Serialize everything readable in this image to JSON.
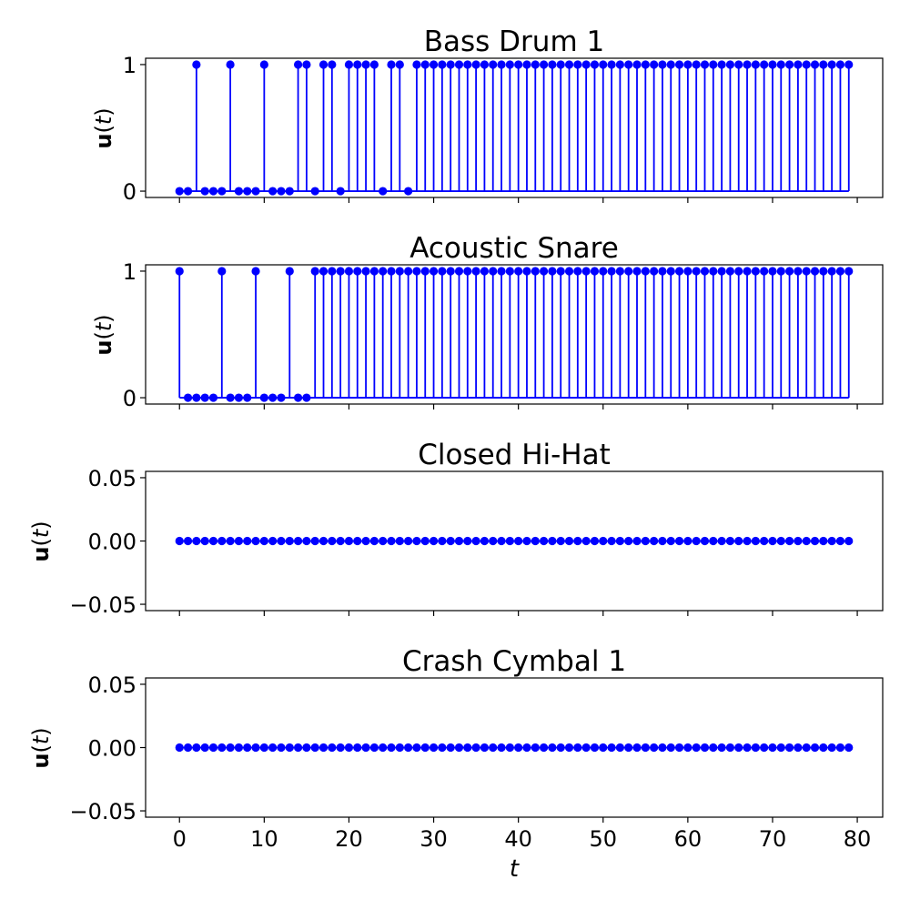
{
  "chart_data": [
    {
      "type": "stem",
      "title": "Bass Drum 1",
      "ylabel": {
        "prefix": "u",
        "open": "(",
        "var": "t",
        "close": ")"
      },
      "xlabel": "",
      "xlim": [
        -4,
        83
      ],
      "ylim": [
        -0.05,
        1.05
      ],
      "yticks": [
        0,
        1
      ],
      "ytick_labels": [
        "0",
        "1"
      ],
      "xticks": [
        0,
        10,
        20,
        30,
        40,
        50,
        60,
        70,
        80
      ],
      "show_xtick_labels": false,
      "color": "#0000ff",
      "x": [
        0,
        1,
        2,
        3,
        4,
        5,
        6,
        7,
        8,
        9,
        10,
        11,
        12,
        13,
        14,
        15,
        16,
        17,
        18,
        19,
        20,
        21,
        22,
        23,
        24,
        25,
        26,
        27,
        28,
        29,
        30,
        31,
        32,
        33,
        34,
        35,
        36,
        37,
        38,
        39,
        40,
        41,
        42,
        43,
        44,
        45,
        46,
        47,
        48,
        49,
        50,
        51,
        52,
        53,
        54,
        55,
        56,
        57,
        58,
        59,
        60,
        61,
        62,
        63,
        64,
        65,
        66,
        67,
        68,
        69,
        70,
        71,
        72,
        73,
        74,
        75,
        76,
        77,
        78,
        79
      ],
      "values": [
        0,
        0,
        1,
        0,
        0,
        0,
        1,
        0,
        0,
        0,
        1,
        0,
        0,
        0,
        1,
        1,
        0,
        1,
        1,
        0,
        1,
        1,
        1,
        1,
        0,
        1,
        1,
        0,
        1,
        1,
        1,
        1,
        1,
        1,
        1,
        1,
        1,
        1,
        1,
        1,
        1,
        1,
        1,
        1,
        1,
        1,
        1,
        1,
        1,
        1,
        1,
        1,
        1,
        1,
        1,
        1,
        1,
        1,
        1,
        1,
        1,
        1,
        1,
        1,
        1,
        1,
        1,
        1,
        1,
        1,
        1,
        1,
        1,
        1,
        1,
        1,
        1,
        1,
        1,
        1
      ]
    },
    {
      "type": "stem",
      "title": "Acoustic Snare",
      "ylabel": {
        "prefix": "u",
        "open": "(",
        "var": "t",
        "close": ")"
      },
      "xlabel": "",
      "xlim": [
        -4,
        83
      ],
      "ylim": [
        -0.05,
        1.05
      ],
      "yticks": [
        0,
        1
      ],
      "ytick_labels": [
        "0",
        "1"
      ],
      "xticks": [
        0,
        10,
        20,
        30,
        40,
        50,
        60,
        70,
        80
      ],
      "show_xtick_labels": false,
      "color": "#0000ff",
      "x": [
        0,
        1,
        2,
        3,
        4,
        5,
        6,
        7,
        8,
        9,
        10,
        11,
        12,
        13,
        14,
        15,
        16,
        17,
        18,
        19,
        20,
        21,
        22,
        23,
        24,
        25,
        26,
        27,
        28,
        29,
        30,
        31,
        32,
        33,
        34,
        35,
        36,
        37,
        38,
        39,
        40,
        41,
        42,
        43,
        44,
        45,
        46,
        47,
        48,
        49,
        50,
        51,
        52,
        53,
        54,
        55,
        56,
        57,
        58,
        59,
        60,
        61,
        62,
        63,
        64,
        65,
        66,
        67,
        68,
        69,
        70,
        71,
        72,
        73,
        74,
        75,
        76,
        77,
        78,
        79
      ],
      "values": [
        1,
        0,
        0,
        0,
        0,
        1,
        0,
        0,
        0,
        1,
        0,
        0,
        0,
        1,
        0,
        0,
        1,
        1,
        1,
        1,
        1,
        1,
        1,
        1,
        1,
        1,
        1,
        1,
        1,
        1,
        1,
        1,
        1,
        1,
        1,
        1,
        1,
        1,
        1,
        1,
        1,
        1,
        1,
        1,
        1,
        1,
        1,
        1,
        1,
        1,
        1,
        1,
        1,
        1,
        1,
        1,
        1,
        1,
        1,
        1,
        1,
        1,
        1,
        1,
        1,
        1,
        1,
        1,
        1,
        1,
        1,
        1,
        1,
        1,
        1,
        1,
        1,
        1,
        1,
        1
      ]
    },
    {
      "type": "stem",
      "title": "Closed Hi-Hat",
      "ylabel": {
        "prefix": "u",
        "open": "(",
        "var": "t",
        "close": ")"
      },
      "xlabel": "",
      "xlim": [
        -4,
        83
      ],
      "ylim": [
        -0.055,
        0.055
      ],
      "yticks": [
        -0.05,
        0.0,
        0.05
      ],
      "ytick_labels": [
        "−0.05",
        "0.00",
        "0.05"
      ],
      "xticks": [
        0,
        10,
        20,
        30,
        40,
        50,
        60,
        70,
        80
      ],
      "show_xtick_labels": false,
      "color": "#0000ff",
      "x": [
        0,
        1,
        2,
        3,
        4,
        5,
        6,
        7,
        8,
        9,
        10,
        11,
        12,
        13,
        14,
        15,
        16,
        17,
        18,
        19,
        20,
        21,
        22,
        23,
        24,
        25,
        26,
        27,
        28,
        29,
        30,
        31,
        32,
        33,
        34,
        35,
        36,
        37,
        38,
        39,
        40,
        41,
        42,
        43,
        44,
        45,
        46,
        47,
        48,
        49,
        50,
        51,
        52,
        53,
        54,
        55,
        56,
        57,
        58,
        59,
        60,
        61,
        62,
        63,
        64,
        65,
        66,
        67,
        68,
        69,
        70,
        71,
        72,
        73,
        74,
        75,
        76,
        77,
        78,
        79
      ],
      "values": [
        0,
        0,
        0,
        0,
        0,
        0,
        0,
        0,
        0,
        0,
        0,
        0,
        0,
        0,
        0,
        0,
        0,
        0,
        0,
        0,
        0,
        0,
        0,
        0,
        0,
        0,
        0,
        0,
        0,
        0,
        0,
        0,
        0,
        0,
        0,
        0,
        0,
        0,
        0,
        0,
        0,
        0,
        0,
        0,
        0,
        0,
        0,
        0,
        0,
        0,
        0,
        0,
        0,
        0,
        0,
        0,
        0,
        0,
        0,
        0,
        0,
        0,
        0,
        0,
        0,
        0,
        0,
        0,
        0,
        0,
        0,
        0,
        0,
        0,
        0,
        0,
        0,
        0,
        0,
        0
      ]
    },
    {
      "type": "stem",
      "title": "Crash Cymbal 1",
      "ylabel": {
        "prefix": "u",
        "open": "(",
        "var": "t",
        "close": ")"
      },
      "xlabel": "t",
      "xlim": [
        -4,
        83
      ],
      "ylim": [
        -0.055,
        0.055
      ],
      "yticks": [
        -0.05,
        0.0,
        0.05
      ],
      "ytick_labels": [
        "−0.05",
        "0.00",
        "0.05"
      ],
      "xticks": [
        0,
        10,
        20,
        30,
        40,
        50,
        60,
        70,
        80
      ],
      "xtick_labels": [
        "0",
        "10",
        "20",
        "30",
        "40",
        "50",
        "60",
        "70",
        "80"
      ],
      "show_xtick_labels": true,
      "color": "#0000ff",
      "x": [
        0,
        1,
        2,
        3,
        4,
        5,
        6,
        7,
        8,
        9,
        10,
        11,
        12,
        13,
        14,
        15,
        16,
        17,
        18,
        19,
        20,
        21,
        22,
        23,
        24,
        25,
        26,
        27,
        28,
        29,
        30,
        31,
        32,
        33,
        34,
        35,
        36,
        37,
        38,
        39,
        40,
        41,
        42,
        43,
        44,
        45,
        46,
        47,
        48,
        49,
        50,
        51,
        52,
        53,
        54,
        55,
        56,
        57,
        58,
        59,
        60,
        61,
        62,
        63,
        64,
        65,
        66,
        67,
        68,
        69,
        70,
        71,
        72,
        73,
        74,
        75,
        76,
        77,
        78,
        79
      ],
      "values": [
        0,
        0,
        0,
        0,
        0,
        0,
        0,
        0,
        0,
        0,
        0,
        0,
        0,
        0,
        0,
        0,
        0,
        0,
        0,
        0,
        0,
        0,
        0,
        0,
        0,
        0,
        0,
        0,
        0,
        0,
        0,
        0,
        0,
        0,
        0,
        0,
        0,
        0,
        0,
        0,
        0,
        0,
        0,
        0,
        0,
        0,
        0,
        0,
        0,
        0,
        0,
        0,
        0,
        0,
        0,
        0,
        0,
        0,
        0,
        0,
        0,
        0,
        0,
        0,
        0,
        0,
        0,
        0,
        0,
        0,
        0,
        0,
        0,
        0,
        0,
        0,
        0,
        0,
        0,
        0
      ]
    }
  ]
}
